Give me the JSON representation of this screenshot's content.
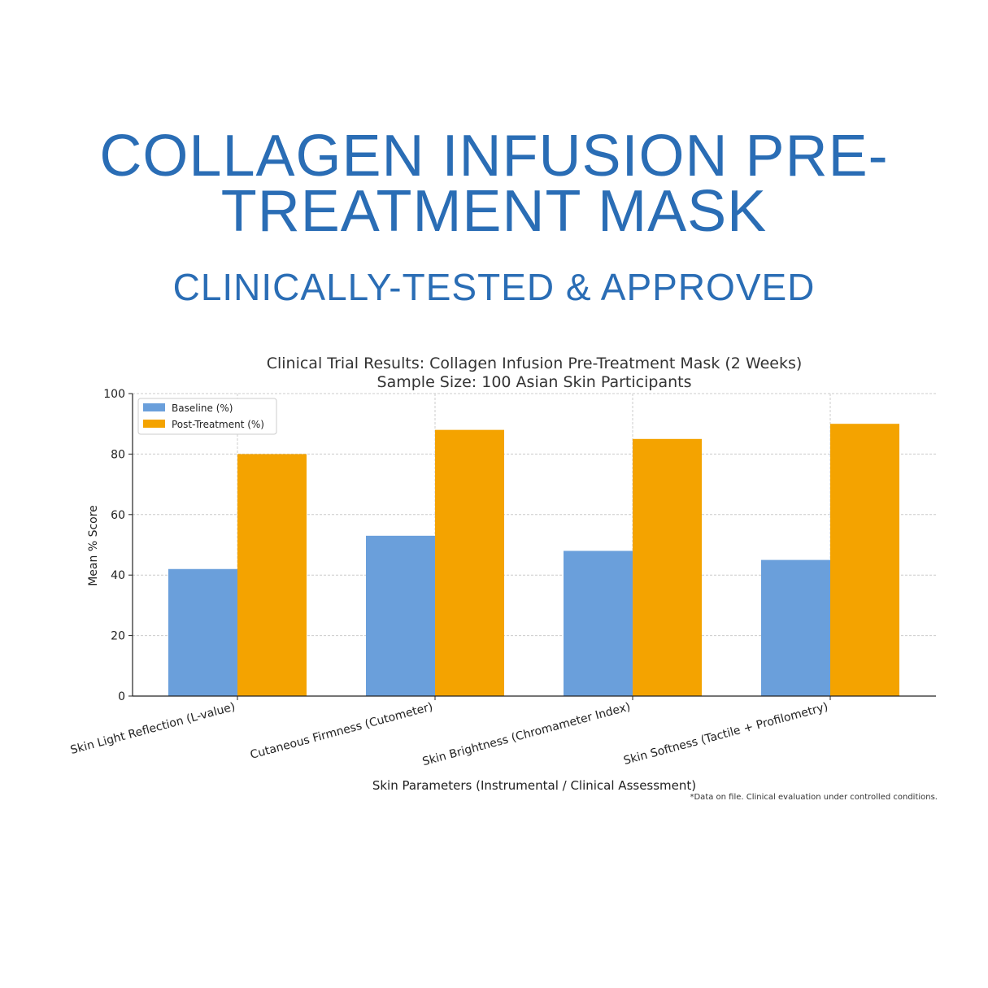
{
  "headline": {
    "title_line1": "COLLAGEN INFUSION PRE-",
    "title_line2": "TREATMENT MASK",
    "subtitle": "CLINICALLY-TESTED & APPROVED"
  },
  "chart_data": {
    "type": "bar",
    "title_line1": "Clinical Trial Results: Collagen Infusion Pre-Treatment Mask (2 Weeks)",
    "title_line2": "Sample Size: 100 Asian Skin Participants",
    "xlabel": "Skin Parameters (Instrumental / Clinical Assessment)",
    "ylabel": "Mean % Score",
    "ylim": [
      0,
      100
    ],
    "yticks": [
      0,
      20,
      40,
      60,
      80,
      100
    ],
    "grid": true,
    "legend_position": "top-left",
    "categories": [
      "Skin Light Reflection (L-value)",
      "Cutaneous Firmness (Cutometer)",
      "Skin Brightness (Chromameter Index)",
      "Skin Softness (Tactile + Profilometry)"
    ],
    "series": [
      {
        "name": "Baseline (%)",
        "color": "#6a9fdb",
        "values": [
          42,
          53,
          48,
          45
        ]
      },
      {
        "name": "Post-Treatment (%)",
        "color": "#f4a300",
        "values": [
          80,
          88,
          85,
          90
        ]
      }
    ],
    "footnote": "*Data on file. Clinical evaluation under controlled conditions."
  }
}
